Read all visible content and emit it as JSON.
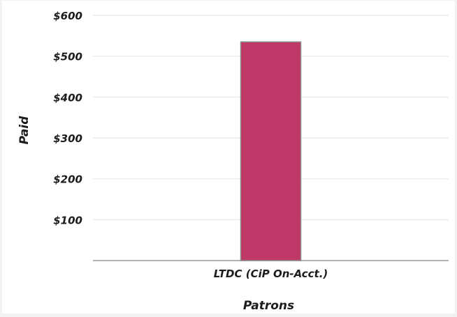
{
  "chart_data": {
    "type": "bar",
    "categories": [
      "LTDC (CiP On-Acct.)"
    ],
    "values": [
      535
    ],
    "title": "",
    "xlabel": "Patrons",
    "ylabel": "Paid",
    "ylim": [
      0,
      600
    ],
    "ytick_values": [
      100,
      200,
      300,
      400,
      500,
      600
    ],
    "ytick_labels": [
      "$100",
      "$200",
      "$300",
      "$400",
      "$500",
      "$600"
    ],
    "grid": true,
    "legend": "none",
    "colors": {
      "bar_fill": "#bf3968",
      "bar_stroke": "#8a8a8a",
      "grid": "#ececec",
      "axis": "#9a9a9a"
    }
  }
}
